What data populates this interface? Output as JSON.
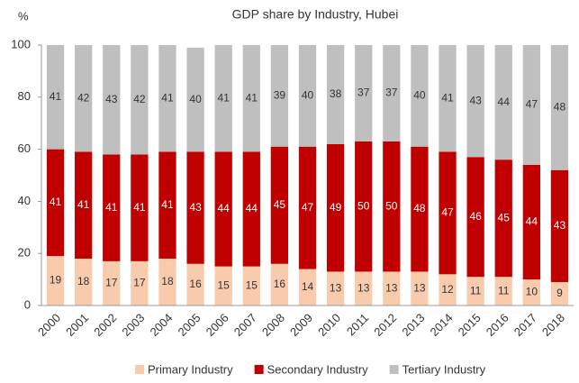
{
  "chart_data": {
    "type": "stacked_bar",
    "title": "GDP share by Industry, Hubei",
    "y_label": "%",
    "categories": [
      "2000",
      "2001",
      "2002",
      "2003",
      "2004",
      "2005",
      "2006",
      "2007",
      "2008",
      "2009",
      "2010",
      "2011",
      "2012",
      "2013",
      "2014",
      "2015",
      "2016",
      "2017",
      "2018"
    ],
    "series": [
      {
        "name": "Primary Industry",
        "color": "#f8cbad",
        "values": [
          19,
          18,
          17,
          17,
          18,
          16,
          15,
          15,
          16,
          14,
          13,
          13,
          13,
          13,
          12,
          11,
          11,
          10,
          9
        ]
      },
      {
        "name": "Secondary Industry",
        "color": "#c00000",
        "values": [
          41,
          41,
          41,
          41,
          41,
          43,
          44,
          44,
          45,
          47,
          49,
          50,
          50,
          48,
          47,
          46,
          45,
          44,
          43
        ]
      },
      {
        "name": "Tertiary Industry",
        "color": "#bfbfbf",
        "values": [
          41,
          42,
          43,
          42,
          41,
          40,
          41,
          41,
          39,
          40,
          38,
          37,
          37,
          40,
          41,
          43,
          44,
          47,
          48
        ]
      }
    ],
    "ylim": [
      0,
      100
    ],
    "yticks": [
      0,
      20,
      40,
      60,
      80,
      100
    ],
    "legend": "bottom"
  }
}
